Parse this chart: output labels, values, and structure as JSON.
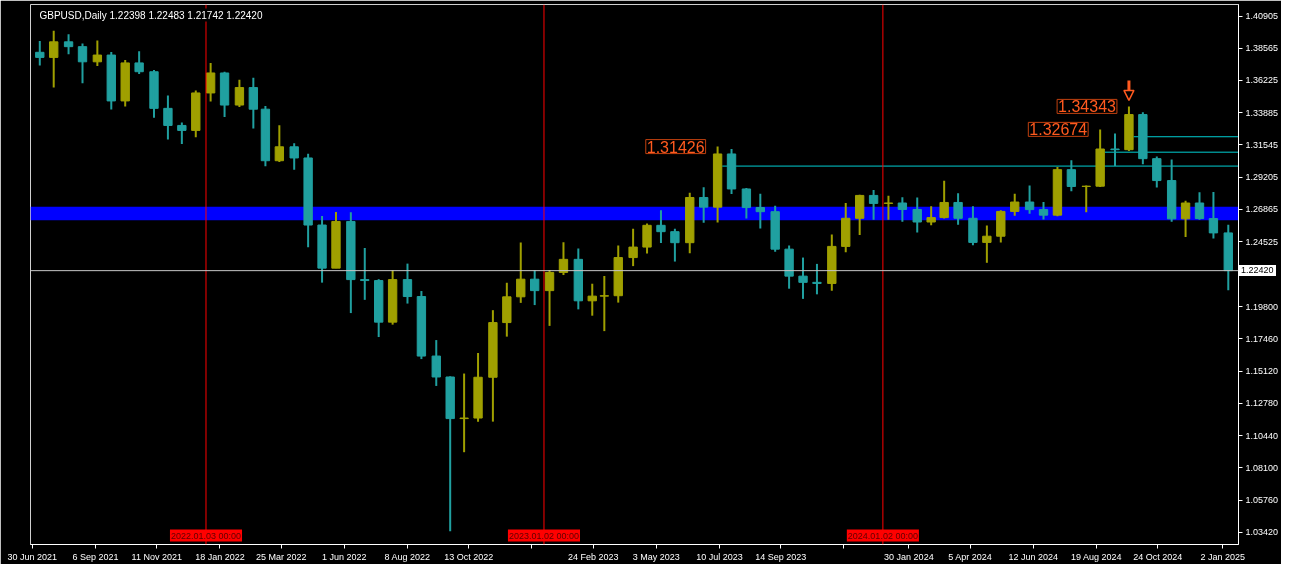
{
  "chart_data": {
    "type": "candlestick",
    "title": "GBPUSD,Daily 1.22398 1.22483 1.21742 1.22420",
    "x": [
      "2021-07-08",
      "2021-07-23",
      "2021-08-08",
      "2021-08-23",
      "2021-09-08",
      "2021-09-23",
      "2021-10-08",
      "2021-10-23",
      "2021-11-08",
      "2021-11-23",
      "2021-12-08",
      "2021-12-23",
      "2022-01-08",
      "2022-01-23",
      "2022-02-08",
      "2022-02-23",
      "2022-03-08",
      "2022-03-23",
      "2022-04-08",
      "2022-04-23",
      "2022-05-08",
      "2022-05-23",
      "2022-06-08",
      "2022-06-23",
      "2022-07-08",
      "2022-07-23",
      "2022-08-08",
      "2022-08-23",
      "2022-09-08",
      "2022-09-23",
      "2022-10-08",
      "2022-10-23",
      "2022-11-08",
      "2022-11-23",
      "2022-12-08",
      "2022-12-23",
      "2023-01-08",
      "2023-01-23",
      "2023-02-08",
      "2023-02-23",
      "2023-03-08",
      "2023-03-23",
      "2023-04-08",
      "2023-04-23",
      "2023-05-08",
      "2023-05-23",
      "2023-06-08",
      "2023-06-23",
      "2023-07-08",
      "2023-07-23",
      "2023-08-08",
      "2023-08-23",
      "2023-09-08",
      "2023-09-23",
      "2023-10-08",
      "2023-10-23",
      "2023-11-08",
      "2023-11-23",
      "2023-12-08",
      "2023-12-23",
      "2024-01-08",
      "2024-01-23",
      "2024-02-08",
      "2024-02-23",
      "2024-03-08",
      "2024-03-23",
      "2024-04-08",
      "2024-04-23",
      "2024-05-08",
      "2024-05-23",
      "2024-06-08",
      "2024-06-23",
      "2024-07-08",
      "2024-07-23",
      "2024-08-08",
      "2024-08-23",
      "2024-09-08",
      "2024-09-23",
      "2024-10-08",
      "2024-10-23",
      "2024-11-08",
      "2024-11-23",
      "2024-12-08",
      "2024-12-23",
      "2025-01-08"
    ],
    "ohlc": [
      [
        1.3827,
        1.3909,
        1.3732,
        1.379
      ],
      [
        1.379,
        1.3984,
        1.3572,
        1.3903
      ],
      [
        1.3903,
        1.3958,
        1.3812,
        1.3868
      ],
      [
        1.3868,
        1.389,
        1.3602,
        1.3758
      ],
      [
        1.3758,
        1.3913,
        1.3727,
        1.3807
      ],
      [
        1.3807,
        1.383,
        1.3412,
        1.3474
      ],
      [
        1.3474,
        1.3771,
        1.3434,
        1.375
      ],
      [
        1.375,
        1.3834,
        1.367,
        1.3686
      ],
      [
        1.3686,
        1.3698,
        1.3352,
        1.342
      ],
      [
        1.342,
        1.3514,
        1.3194,
        1.3296
      ],
      [
        1.3296,
        1.3318,
        1.3161,
        1.326
      ],
      [
        1.326,
        1.355,
        1.321,
        1.3532
      ],
      [
        1.3532,
        1.3749,
        1.3469,
        1.3677
      ],
      [
        1.3677,
        1.3686,
        1.3358,
        1.3444
      ],
      [
        1.3444,
        1.3628,
        1.343,
        1.3571
      ],
      [
        1.3571,
        1.3643,
        1.3273,
        1.3414
      ],
      [
        1.3414,
        1.3438,
        1.3,
        1.304
      ],
      [
        1.304,
        1.3298,
        1.303,
        1.3141
      ],
      [
        1.3141,
        1.3167,
        1.2975,
        1.306
      ],
      [
        1.306,
        1.309,
        1.2411,
        1.2573
      ],
      [
        1.2573,
        1.2638,
        1.2155,
        1.226
      ],
      [
        1.226,
        1.2667,
        1.226,
        1.2599
      ],
      [
        1.2599,
        1.2666,
        1.1934,
        1.2177
      ],
      [
        1.2177,
        1.2406,
        1.203,
        1.217
      ],
      [
        1.217,
        1.218,
        1.176,
        1.1868
      ],
      [
        1.1868,
        1.2246,
        1.185,
        1.2177
      ],
      [
        1.2177,
        1.2293,
        1.2003,
        1.2054
      ],
      [
        1.2054,
        1.2094,
        1.16,
        1.1622
      ],
      [
        1.1622,
        1.1738,
        1.1405,
        1.147
      ],
      [
        1.147,
        1.1475,
        1.035,
        1.1168
      ],
      [
        1.1168,
        1.1495,
        1.0924,
        1.1172
      ],
      [
        1.1172,
        1.1644,
        1.1145,
        1.1468
      ],
      [
        1.1468,
        1.1955,
        1.1146,
        1.1865
      ],
      [
        1.1865,
        1.2154,
        1.1763,
        1.2052
      ],
      [
        1.2052,
        1.2447,
        1.2008,
        1.218
      ],
      [
        1.218,
        1.2245,
        1.1992,
        1.2097
      ],
      [
        1.2097,
        1.2246,
        1.1841,
        1.2229
      ],
      [
        1.2229,
        1.2448,
        1.221,
        1.2324
      ],
      [
        1.2324,
        1.2402,
        1.1961,
        1.2023
      ],
      [
        1.2023,
        1.2147,
        1.1915,
        1.2057
      ],
      [
        1.2057,
        1.2203,
        1.1803,
        1.206
      ],
      [
        1.206,
        1.2424,
        1.201,
        1.2337
      ],
      [
        1.2337,
        1.2546,
        1.2275,
        1.2413
      ],
      [
        1.2413,
        1.2584,
        1.2367,
        1.2571
      ],
      [
        1.2571,
        1.268,
        1.2442,
        1.2525
      ],
      [
        1.2525,
        1.2546,
        1.2308,
        1.2445
      ],
      [
        1.2445,
        1.2808,
        1.2369,
        1.2773
      ],
      [
        1.2773,
        1.2848,
        1.259,
        1.2703
      ],
      [
        1.2703,
        1.31426,
        1.2591,
        1.3089
      ],
      [
        1.3089,
        1.3125,
        1.2799,
        1.2835
      ],
      [
        1.2835,
        1.2842,
        1.262,
        1.27
      ],
      [
        1.27,
        1.28,
        1.2548,
        1.267
      ],
      [
        1.267,
        1.2713,
        1.2379,
        1.2398
      ],
      [
        1.2398,
        1.2425,
        1.2111,
        1.2202
      ],
      [
        1.2202,
        1.2337,
        1.2037,
        1.2157
      ],
      [
        1.2157,
        1.2291,
        1.207,
        1.2149
      ],
      [
        1.2149,
        1.2505,
        1.2096,
        1.2418
      ],
      [
        1.2418,
        1.2733,
        1.2375,
        1.2622
      ],
      [
        1.2622,
        1.2793,
        1.25,
        1.2788
      ],
      [
        1.2788,
        1.2827,
        1.2612,
        1.273
      ],
      [
        1.273,
        1.2786,
        1.2611,
        1.2733
      ],
      [
        1.2733,
        1.2775,
        1.2597,
        1.2686
      ],
      [
        1.2686,
        1.2773,
        1.2518,
        1.2595
      ],
      [
        1.2595,
        1.271,
        1.2572,
        1.2627
      ],
      [
        1.2627,
        1.2894,
        1.262,
        1.2737
      ],
      [
        1.2737,
        1.2803,
        1.2575,
        1.2622
      ],
      [
        1.2622,
        1.2709,
        1.2426,
        1.2447
      ],
      [
        1.2447,
        1.257,
        1.2299,
        1.2492
      ],
      [
        1.2492,
        1.2681,
        1.2446,
        1.2672
      ],
      [
        1.2672,
        1.2801,
        1.264,
        1.274
      ],
      [
        1.274,
        1.286,
        1.2655,
        1.2685
      ],
      [
        1.2685,
        1.274,
        1.2613,
        1.2645
      ],
      [
        1.2645,
        1.2995,
        1.2637,
        1.2975
      ],
      [
        1.2975,
        1.3044,
        1.2819,
        1.2853
      ],
      [
        1.2853,
        1.286,
        1.2665,
        1.2855
      ],
      [
        1.2855,
        1.32674,
        1.285,
        1.3125
      ],
      [
        1.3125,
        1.3238,
        1.3002,
        1.312
      ],
      [
        1.312,
        1.34343,
        1.311,
        1.3375
      ],
      [
        1.3375,
        1.3391,
        1.3015,
        1.3055
      ],
      [
        1.3055,
        1.307,
        1.2845,
        1.2896
      ],
      [
        1.2896,
        1.3048,
        1.2597,
        1.2618
      ],
      [
        1.2618,
        1.275,
        1.2487,
        1.2733
      ],
      [
        1.2733,
        1.2811,
        1.2612,
        1.262
      ],
      [
        1.262,
        1.2812,
        1.2475,
        1.2516
      ],
      [
        1.2516,
        1.2576,
        1.21,
        1.2242
      ]
    ],
    "colors": [
      "#20a0a0",
      "#a0a000",
      "#20a0a0",
      "#20a0a0",
      "#a0a000",
      "#20a0a0",
      "#a0a000",
      "#20a0a0",
      "#20a0a0",
      "#20a0a0",
      "#20a0a0",
      "#a0a000",
      "#a0a000",
      "#20a0a0",
      "#a0a000",
      "#20a0a0",
      "#20a0a0",
      "#a0a000",
      "#20a0a0",
      "#20a0a0",
      "#20a0a0",
      "#a0a000",
      "#20a0a0",
      "#20a0a0",
      "#20a0a0",
      "#a0a000",
      "#20a0a0",
      "#20a0a0",
      "#20a0a0",
      "#20a0a0",
      "#a0a000",
      "#a0a000",
      "#a0a000",
      "#a0a000",
      "#a0a000",
      "#20a0a0",
      "#a0a000",
      "#a0a000",
      "#20a0a0",
      "#a0a000",
      "#a0a000",
      "#a0a000",
      "#a0a000",
      "#a0a000",
      "#20a0a0",
      "#20a0a0",
      "#a0a000",
      "#20a0a0",
      "#a0a000",
      "#20a0a0",
      "#20a0a0",
      "#20a0a0",
      "#20a0a0",
      "#20a0a0",
      "#20a0a0",
      "#20a0a0",
      "#a0a000",
      "#a0a000",
      "#a0a000",
      "#20a0a0",
      "#a0a000",
      "#20a0a0",
      "#20a0a0",
      "#a0a000",
      "#a0a000",
      "#20a0a0",
      "#20a0a0",
      "#a0a000",
      "#a0a000",
      "#a0a000",
      "#20a0a0",
      "#20a0a0",
      "#a0a000",
      "#20a0a0",
      "#a0a000",
      "#a0a000",
      "#20a0a0",
      "#a0a000",
      "#20a0a0",
      "#20a0a0",
      "#20a0a0",
      "#a0a000",
      "#20a0a0",
      "#20a0a0",
      "#20a0a0"
    ],
    "series": [
      {
        "type": "line",
        "color": "#00ced1",
        "x": [
          "2023-07-13",
          "2025-01-19"
        ],
        "values": [
          1.3001,
          1.3001
        ]
      },
      {
        "type": "line",
        "color": "#00ced1",
        "x": [
          "2024-08-28",
          "2025-01-19"
        ],
        "values": [
          1.3102,
          1.3102
        ]
      },
      {
        "type": "line",
        "color": "#00ced1",
        "x": [
          "2024-09-28",
          "2025-01-19"
        ],
        "values": [
          1.3214,
          1.3214
        ]
      }
    ],
    "xlim": [
      "2021-06-28",
      "2025-01-19"
    ],
    "ylim": [
      1.0254,
      1.4174
    ],
    "xticks": [
      {
        "value": "2021-06-30",
        "label": "30 Jun 2021"
      },
      {
        "value": "2021-09-06",
        "label": "6 Sep 2021"
      },
      {
        "value": "2021-11-11",
        "label": "11 Nov 2021"
      },
      {
        "value": "2022-01-18",
        "label": "18 Jan 2022"
      },
      {
        "value": "2022-03-25",
        "label": "25 Mar 2022"
      },
      {
        "value": "2022-06-01",
        "label": "1 Jun 2022"
      },
      {
        "value": "2022-08-08",
        "label": "8 Aug 2022"
      },
      {
        "value": "2022-10-13",
        "label": "13 Oct 2022"
      },
      {
        "value": "2022-12-20",
        "label": null
      },
      {
        "value": "2023-02-24",
        "label": "24 Feb 2023"
      },
      {
        "value": "2023-05-03",
        "label": "3 May 2023"
      },
      {
        "value": "2023-07-10",
        "label": "10 Jul 2023"
      },
      {
        "value": "2023-09-14",
        "label": "14 Sep 2023"
      },
      {
        "value": "2023-11-21",
        "label": null
      },
      {
        "value": "2024-01-30",
        "label": "30 Jan 2024"
      },
      {
        "value": "2024-04-05",
        "label": "5 Apr 2024"
      },
      {
        "value": "2024-06-12",
        "label": "12 Jun 2024"
      },
      {
        "value": "2024-08-19",
        "label": "19 Aug 2024"
      },
      {
        "value": "2024-10-24",
        "label": "24 Oct 2024"
      },
      {
        "value": "2025-01-02",
        "label": "2 Jan 2025"
      }
    ],
    "yticks": [
      1.40905,
      1.38565,
      1.36225,
      1.33885,
      1.31545,
      1.29205,
      1.26865,
      1.24525,
      {
        "value": 1.198,
        "label": "1.19800"
      },
      {
        "value": 1.1746,
        "label": "1.17460"
      },
      {
        "value": 1.1512,
        "label": "1.15120"
      },
      {
        "value": 1.1278,
        "label": "1.12780"
      },
      {
        "value": 1.1044,
        "label": "1.10440"
      },
      {
        "value": 1.081,
        "label": "1.08100"
      },
      {
        "value": 1.0576,
        "label": "1.05760"
      },
      {
        "value": 1.0342,
        "label": "1.03420"
      }
    ],
    "ref_lines": [
      {
        "axis": "x",
        "value": "2022-01-03",
        "label": "2022.01.03 00:00",
        "color": "#ff0000"
      },
      {
        "axis": "x",
        "value": "2023-01-02",
        "label": "2023.01.02 00:00",
        "color": "#ff0000"
      },
      {
        "axis": "x",
        "value": "2024-01-02",
        "label": "2024.01.02 00:00",
        "color": "#ff0000"
      },
      {
        "axis": "y",
        "value": 1.2242,
        "label": "1.22420",
        "color": "#c8c8c8"
      }
    ],
    "bands": [
      {
        "axis": "y",
        "from": 1.2607,
        "to": 1.2706,
        "color": "#0000ff"
      }
    ],
    "annotations": [
      {
        "text": "1.31426",
        "x": "2023-07-08",
        "y": 1.31426
      },
      {
        "text": "1.32674",
        "x": "2024-08-23",
        "y": 1.32674
      },
      {
        "text": "1.34343",
        "x": "2024-09-23",
        "y": 1.34343
      }
    ]
  }
}
